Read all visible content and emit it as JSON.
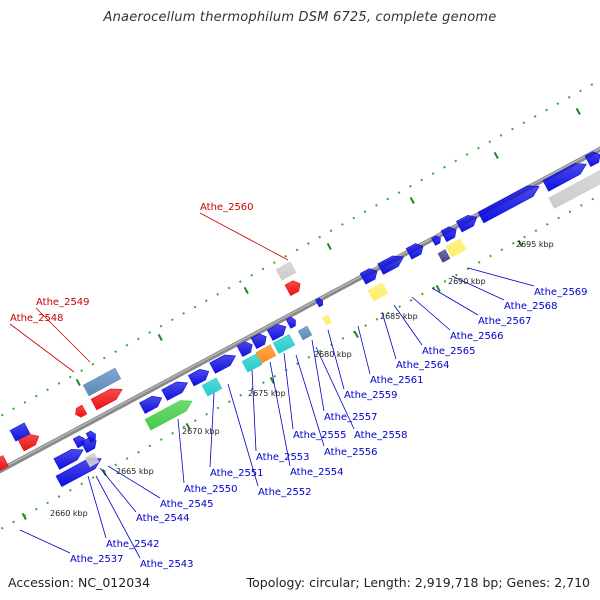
{
  "title": "Anaerocellum thermophilum DSM 6725, complete genome",
  "footer": {
    "accession": "Accession: NC_012034",
    "summary": "Topology: circular; Length: 2,919,718 bp; Genes: 2,710"
  },
  "colors": {
    "blue_gene": "#1010e0",
    "red_gene": "#ee1111",
    "green_gene": "#44cc44",
    "cyan_gene": "#22cccc",
    "orange_gene": "#ff8c1a",
    "steel_gene": "#5a8ab8",
    "yellow_gene": "#ffee66",
    "grey_gene": "#cccccc",
    "navy_gene": "#444488",
    "backbone": "#8a8a8a",
    "ruler_dot": "#33aa33",
    "label_blue": "#0000cc",
    "label_red": "#cc0000"
  },
  "kbp_ticks": [
    "2660 kbp",
    "2665 kbp",
    "2670 kbp",
    "2675 kbp",
    "2680 kbp",
    "2685 kbp",
    "2690 kbp",
    "2695 kbp"
  ],
  "gene_labels": [
    {
      "text": "Athe_2560",
      "color": "red"
    },
    {
      "text": "Athe_2549",
      "color": "red"
    },
    {
      "text": "Athe_2548",
      "color": "red"
    },
    {
      "text": "Athe_2569",
      "color": "blue"
    },
    {
      "text": "Athe_2568",
      "color": "blue"
    },
    {
      "text": "Athe_2567",
      "color": "blue"
    },
    {
      "text": "Athe_2566",
      "color": "blue"
    },
    {
      "text": "Athe_2565",
      "color": "blue"
    },
    {
      "text": "Athe_2564",
      "color": "blue"
    },
    {
      "text": "Athe_2561",
      "color": "blue"
    },
    {
      "text": "Athe_2559",
      "color": "blue"
    },
    {
      "text": "Athe_2557",
      "color": "blue"
    },
    {
      "text": "Athe_2558",
      "color": "blue"
    },
    {
      "text": "Athe_2555",
      "color": "blue"
    },
    {
      "text": "Athe_2556",
      "color": "blue"
    },
    {
      "text": "Athe_2554",
      "color": "blue"
    },
    {
      "text": "Athe_2553",
      "color": "blue"
    },
    {
      "text": "Athe_2551",
      "color": "blue"
    },
    {
      "text": "Athe_2552",
      "color": "blue"
    },
    {
      "text": "Athe_2550",
      "color": "blue"
    },
    {
      "text": "Athe_2545",
      "color": "blue"
    },
    {
      "text": "Athe_2544",
      "color": "blue"
    },
    {
      "text": "Athe_2542",
      "color": "blue"
    },
    {
      "text": "Athe_2543",
      "color": "blue"
    },
    {
      "text": "Athe_2537",
      "color": "blue"
    }
  ]
}
